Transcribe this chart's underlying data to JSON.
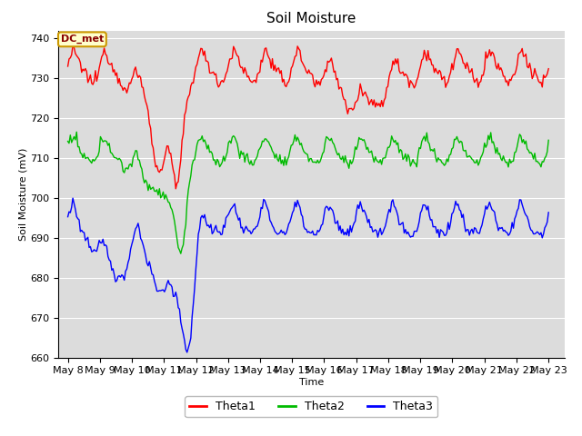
{
  "title": "Soil Moisture",
  "xlabel": "Time",
  "ylabel": "Soil Moisture (mV)",
  "ylim": [
    660,
    742
  ],
  "yticks": [
    660,
    670,
    680,
    690,
    700,
    710,
    720,
    730,
    740
  ],
  "xtick_labels": [
    "May 8",
    "May 9",
    "May 10",
    "May 11",
    "May 12",
    "May 13",
    "May 14",
    "May 15",
    "May 16",
    "May 17",
    "May 18",
    "May 19",
    "May 20",
    "May 21",
    "May 22",
    "May 23"
  ],
  "line_colors": {
    "Theta1": "#ff0000",
    "Theta2": "#00bb00",
    "Theta3": "#0000ff"
  },
  "line_width": 1.0,
  "plot_bg_color": "#dcdcdc",
  "fig_bg_color": "#ffffff",
  "annotation_text": "DC_met",
  "annotation_bg": "#ffffcc",
  "annotation_border": "#cc9900",
  "grid_color": "#ffffff",
  "grid_lw": 0.8,
  "title_fontsize": 11,
  "axis_label_fontsize": 8,
  "tick_fontsize": 8
}
